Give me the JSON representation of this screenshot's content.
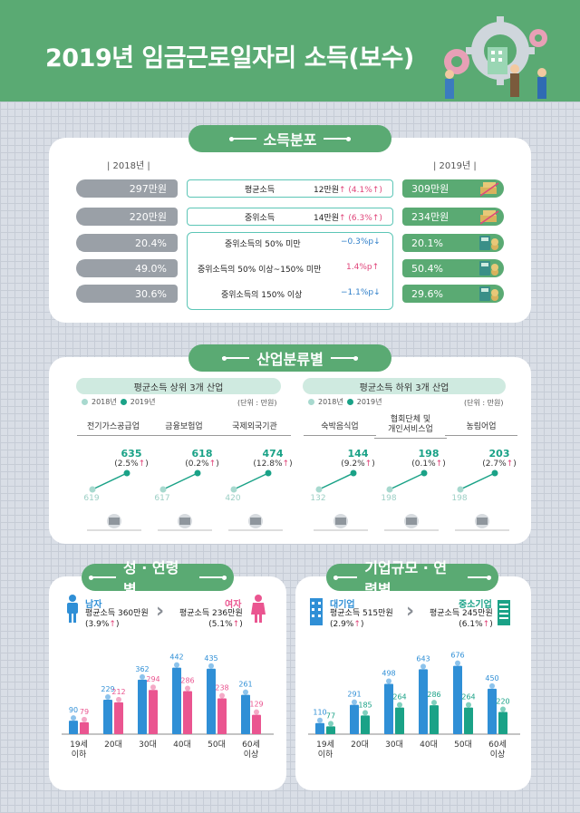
{
  "title": "2019년 임금근로일자리 소득(보수)",
  "colors": {
    "green": "#5aaa73",
    "teal": "#1aa287",
    "blue": "#2f8fd6",
    "pink": "#ea5590",
    "gray": "#9aa0a7"
  },
  "income_dist": {
    "section_title": "소득분포",
    "year_2018": "| 2018년 |",
    "year_2019": "| 2019년 |",
    "rows": [
      {
        "left": "297만원",
        "label": "평균소득",
        "change": "12만원",
        "pct": "(4.1%",
        "right": "309만원",
        "dir": "up"
      },
      {
        "left": "220만원",
        "label": "중위소득",
        "change": "14만원",
        "pct": "(6.3%",
        "right": "234만원",
        "dir": "up"
      },
      {
        "left": "20.4%",
        "label": "중위소득의 50% 미만",
        "change": "−0.3%p",
        "pct": "",
        "right": "20.1%",
        "dir": "down"
      },
      {
        "left": "49.0%",
        "label": "중위소득의 50% 이상~150% 미만",
        "change": "1.4%p",
        "pct": "",
        "right": "50.4%",
        "dir": "up"
      },
      {
        "left": "30.6%",
        "label": "중위소득의 150% 이상",
        "change": "−1.1%p",
        "pct": "",
        "right": "29.6%",
        "dir": "down"
      }
    ]
  },
  "industry": {
    "section_title": "산업분류별",
    "top_title": "평균소득 상위 3개 산업",
    "bottom_title": "평균소득 하위 3개 산업",
    "legend_2018": "2018년",
    "legend_2019": "2019년",
    "unit": "(단위 : 만원)"
  },
  "gender_age": {
    "section_title": "성 · 연령별",
    "male_label": "남자",
    "male_avg": "평균소득 360만원",
    "male_pct": "(3.9%",
    "female_label": "여자",
    "female_avg": "평균소득 236만원",
    "female_pct": "(5.1%"
  },
  "firm_age": {
    "section_title": "기업규모 · 연령별",
    "large_label": "대기업",
    "large_avg": "평균소득 515만원",
    "large_pct": "(2.9%",
    "sme_label": "중소기업",
    "sme_avg": "평균소득 245만원",
    "sme_pct": "(6.1%"
  },
  "chart_data": [
    {
      "type": "line",
      "title": "평균소득 상위 3개 산업",
      "unit": "만원",
      "categories": [
        "전기가스공급업",
        "금융보험업",
        "국제외국기관"
      ],
      "series": [
        {
          "name": "2018년",
          "values": [
            619,
            617,
            420
          ]
        },
        {
          "name": "2019년",
          "values": [
            635,
            618,
            474
          ]
        }
      ],
      "pct_labels": [
        "(2.5%",
        "(0.2%",
        "(12.8%"
      ]
    },
    {
      "type": "line",
      "title": "평균소득 하위 3개 산업",
      "unit": "만원",
      "categories": [
        "숙박음식업",
        "협회단체 및\n개인서비스업",
        "농림어업"
      ],
      "series": [
        {
          "name": "2018년",
          "values": [
            132,
            198,
            198
          ]
        },
        {
          "name": "2019년",
          "values": [
            144,
            198,
            203
          ]
        }
      ],
      "pct_labels": [
        "(9.2%",
        "(0.1%",
        "(2.7%"
      ]
    },
    {
      "type": "bar",
      "title": "성 · 연령별",
      "categories": [
        "19세\n이하",
        "20대",
        "30대",
        "40대",
        "50대",
        "60세\n이상"
      ],
      "series": [
        {
          "name": "남자",
          "values": [
            90,
            229,
            362,
            442,
            435,
            261
          ]
        },
        {
          "name": "여자",
          "values": [
            79,
            212,
            294,
            286,
            238,
            129
          ]
        }
      ]
    },
    {
      "type": "bar",
      "title": "기업규모 · 연령별",
      "categories": [
        "19세\n이하",
        "20대",
        "30대",
        "40대",
        "50대",
        "60세\n이상"
      ],
      "series": [
        {
          "name": "대기업",
          "values": [
            110,
            291,
            498,
            643,
            676,
            450
          ]
        },
        {
          "name": "중소기업",
          "values": [
            77,
            185,
            264,
            286,
            264,
            220
          ]
        }
      ]
    }
  ]
}
